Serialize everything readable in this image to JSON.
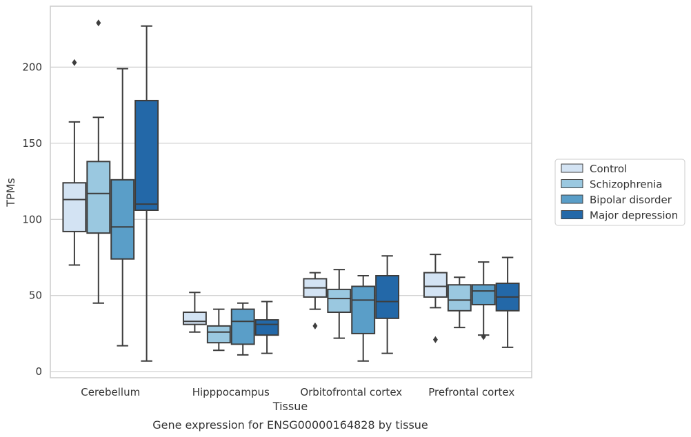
{
  "caption": "Gene expression for ENSG00000164828 by tissue",
  "chart_data": {
    "type": "box",
    "xlabel": "Tissue",
    "ylabel": "TPMs",
    "ylim": [
      -4,
      240
    ],
    "yticks": [
      0,
      50,
      100,
      150,
      200
    ],
    "grid": "y",
    "legend_position": "right",
    "categories": [
      "Cerebellum",
      "Hipppocampus",
      "Orbitofrontal cortex",
      "Prefrontal cortex"
    ],
    "series": [
      {
        "name": "Control",
        "color": "#d3e3f3",
        "boxes": [
          {
            "whislo": 70,
            "q1": 92,
            "med": 113,
            "q3": 124,
            "whishi": 164,
            "fliers": [
              203
            ]
          },
          {
            "whislo": 26,
            "q1": 31,
            "med": 33,
            "q3": 39,
            "whishi": 52,
            "fliers": []
          },
          {
            "whislo": 41,
            "q1": 49,
            "med": 55,
            "q3": 61,
            "whishi": 65,
            "fliers": [
              30
            ]
          },
          {
            "whislo": 42,
            "q1": 49,
            "med": 56,
            "q3": 65,
            "whishi": 77,
            "fliers": [
              21
            ]
          }
        ]
      },
      {
        "name": "Schizophrenia",
        "color": "#9ac8e0",
        "boxes": [
          {
            "whislo": 45,
            "q1": 91,
            "med": 117,
            "q3": 138,
            "whishi": 167,
            "fliers": [
              229
            ]
          },
          {
            "whislo": 14,
            "q1": 19,
            "med": 26,
            "q3": 30,
            "whishi": 41,
            "fliers": []
          },
          {
            "whislo": 22,
            "q1": 39,
            "med": 48,
            "q3": 54,
            "whishi": 67,
            "fliers": []
          },
          {
            "whislo": 29,
            "q1": 40,
            "med": 47,
            "q3": 57,
            "whishi": 62,
            "fliers": []
          }
        ]
      },
      {
        "name": "Bipolar disorder",
        "color": "#5a9ec8",
        "boxes": [
          {
            "whislo": 17,
            "q1": 74,
            "med": 95,
            "q3": 126,
            "whishi": 199,
            "fliers": []
          },
          {
            "whislo": 11,
            "q1": 18,
            "med": 33,
            "q3": 41,
            "whishi": 45,
            "fliers": []
          },
          {
            "whislo": 7,
            "q1": 25,
            "med": 47,
            "q3": 56,
            "whishi": 63,
            "fliers": []
          },
          {
            "whislo": 24,
            "q1": 44,
            "med": 53,
            "q3": 57,
            "whishi": 72,
            "fliers": [
              23
            ]
          }
        ]
      },
      {
        "name": "Major depression",
        "color": "#2368a8",
        "boxes": [
          {
            "whislo": 7,
            "q1": 106,
            "med": 110,
            "q3": 178,
            "whishi": 227,
            "fliers": []
          },
          {
            "whislo": 12,
            "q1": 24,
            "med": 31,
            "q3": 34,
            "whishi": 46,
            "fliers": []
          },
          {
            "whislo": 12,
            "q1": 35,
            "med": 46,
            "q3": 63,
            "whishi": 76,
            "fliers": []
          },
          {
            "whislo": 16,
            "q1": 40,
            "med": 49,
            "q3": 58,
            "whishi": 75,
            "fliers": []
          }
        ]
      }
    ]
  }
}
